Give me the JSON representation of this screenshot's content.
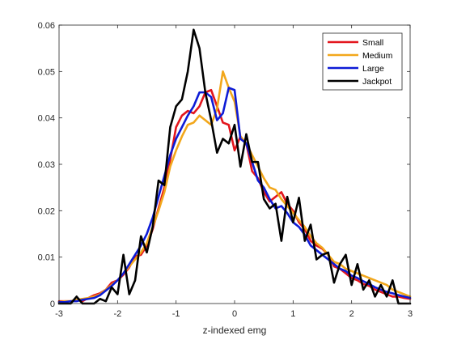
{
  "chart_data": {
    "type": "line",
    "title": "",
    "xlabel": "z-indexed emg",
    "ylabel": "",
    "xlim": [
      -3,
      3
    ],
    "ylim": [
      0,
      0.06
    ],
    "xticks": [
      "-3",
      "-2",
      "-1",
      "0",
      "1",
      "2",
      "3"
    ],
    "yticks": [
      "0",
      "0.01",
      "0.02",
      "0.03",
      "0.04",
      "0.05",
      "0.06"
    ],
    "grid": false,
    "legend_position": "top-right",
    "series": [
      {
        "name": "Small",
        "color": "#e3161d",
        "x": [
          -3.0,
          -2.9,
          -2.8,
          -2.7,
          -2.6,
          -2.5,
          -2.4,
          -2.3,
          -2.2,
          -2.1,
          -2.0,
          -1.9,
          -1.8,
          -1.7,
          -1.6,
          -1.5,
          -1.4,
          -1.3,
          -1.2,
          -1.1,
          -1.0,
          -0.9,
          -0.8,
          -0.7,
          -0.6,
          -0.5,
          -0.4,
          -0.3,
          -0.2,
          -0.1,
          0.0,
          0.1,
          0.2,
          0.3,
          0.4,
          0.5,
          0.6,
          0.7,
          0.8,
          0.9,
          1.0,
          1.1,
          1.2,
          1.3,
          1.4,
          1.5,
          1.6,
          1.7,
          1.8,
          1.9,
          2.0,
          2.1,
          2.2,
          2.3,
          2.4,
          2.5,
          2.6,
          2.7,
          2.8,
          2.9,
          3.0
        ],
        "y": [
          0.0005,
          0.0005,
          0.0005,
          0.0008,
          0.0005,
          0.0012,
          0.0018,
          0.0022,
          0.003,
          0.0045,
          0.005,
          0.0062,
          0.0078,
          0.0102,
          0.0105,
          0.0125,
          0.016,
          0.0205,
          0.025,
          0.031,
          0.038,
          0.0405,
          0.0415,
          0.041,
          0.0425,
          0.0455,
          0.046,
          0.0425,
          0.039,
          0.0385,
          0.033,
          0.036,
          0.0345,
          0.0285,
          0.027,
          0.024,
          0.022,
          0.023,
          0.024,
          0.0215,
          0.02,
          0.0175,
          0.016,
          0.0135,
          0.0125,
          0.0118,
          0.0105,
          0.008,
          0.0075,
          0.0065,
          0.0055,
          0.005,
          0.0042,
          0.0038,
          0.003,
          0.0025,
          0.002,
          0.0015,
          0.0015,
          0.0012,
          0.001
        ]
      },
      {
        "name": "Medium",
        "color": "#f2a71b",
        "x": [
          -3.0,
          -2.9,
          -2.8,
          -2.7,
          -2.6,
          -2.5,
          -2.4,
          -2.3,
          -2.2,
          -2.1,
          -2.0,
          -1.9,
          -1.8,
          -1.7,
          -1.6,
          -1.5,
          -1.4,
          -1.3,
          -1.2,
          -1.1,
          -1.0,
          -0.9,
          -0.8,
          -0.7,
          -0.6,
          -0.5,
          -0.4,
          -0.3,
          -0.2,
          -0.1,
          0.0,
          0.1,
          0.2,
          0.3,
          0.4,
          0.5,
          0.6,
          0.7,
          0.8,
          0.9,
          1.0,
          1.1,
          1.2,
          1.3,
          1.4,
          1.5,
          1.6,
          1.7,
          1.8,
          1.9,
          2.0,
          2.1,
          2.2,
          2.3,
          2.4,
          2.5,
          2.6,
          2.7,
          2.8,
          2.9,
          3.0
        ],
        "y": [
          0.0003,
          0.0005,
          0.0005,
          0.0008,
          0.001,
          0.0012,
          0.0015,
          0.002,
          0.003,
          0.004,
          0.005,
          0.0065,
          0.008,
          0.0095,
          0.011,
          0.013,
          0.0165,
          0.02,
          0.024,
          0.0295,
          0.033,
          0.036,
          0.0385,
          0.039,
          0.0405,
          0.0395,
          0.0385,
          0.042,
          0.05,
          0.0465,
          0.0435,
          0.036,
          0.0345,
          0.032,
          0.0295,
          0.027,
          0.025,
          0.0245,
          0.0225,
          0.021,
          0.0195,
          0.018,
          0.0165,
          0.0145,
          0.013,
          0.012,
          0.0105,
          0.009,
          0.0085,
          0.0075,
          0.007,
          0.0065,
          0.006,
          0.0055,
          0.005,
          0.0045,
          0.004,
          0.003,
          0.0025,
          0.002,
          0.0015
        ]
      },
      {
        "name": "Large",
        "color": "#0d1bd6",
        "x": [
          -3.0,
          -2.9,
          -2.8,
          -2.7,
          -2.6,
          -2.5,
          -2.4,
          -2.3,
          -2.2,
          -2.1,
          -2.0,
          -1.9,
          -1.8,
          -1.7,
          -1.6,
          -1.5,
          -1.4,
          -1.3,
          -1.2,
          -1.1,
          -1.0,
          -0.9,
          -0.8,
          -0.7,
          -0.6,
          -0.5,
          -0.4,
          -0.3,
          -0.2,
          -0.1,
          0.0,
          0.1,
          0.2,
          0.3,
          0.4,
          0.5,
          0.6,
          0.7,
          0.8,
          0.9,
          1.0,
          1.1,
          1.2,
          1.3,
          1.4,
          1.5,
          1.6,
          1.7,
          1.8,
          1.9,
          2.0,
          2.1,
          2.2,
          2.3,
          2.4,
          2.5,
          2.6,
          2.7,
          2.8,
          2.9,
          3.0
        ],
        "y": [
          0.0003,
          0.0003,
          0.0005,
          0.0005,
          0.0008,
          0.001,
          0.0012,
          0.0018,
          0.0028,
          0.0038,
          0.005,
          0.0065,
          0.0085,
          0.0105,
          0.0125,
          0.015,
          0.0185,
          0.023,
          0.0275,
          0.032,
          0.0355,
          0.038,
          0.0405,
          0.0425,
          0.0455,
          0.0455,
          0.0445,
          0.0395,
          0.041,
          0.0465,
          0.046,
          0.0355,
          0.0345,
          0.0305,
          0.0265,
          0.025,
          0.0225,
          0.0205,
          0.021,
          0.0195,
          0.0175,
          0.0165,
          0.0148,
          0.0125,
          0.0115,
          0.0105,
          0.0095,
          0.0085,
          0.0075,
          0.007,
          0.006,
          0.0055,
          0.0048,
          0.0042,
          0.0035,
          0.003,
          0.0025,
          0.0022,
          0.0018,
          0.0015,
          0.0012
        ]
      },
      {
        "name": "Jackpot",
        "color": "#000000",
        "x": [
          -3.0,
          -2.9,
          -2.8,
          -2.7,
          -2.6,
          -2.5,
          -2.4,
          -2.3,
          -2.2,
          -2.1,
          -2.0,
          -1.9,
          -1.8,
          -1.7,
          -1.6,
          -1.5,
          -1.4,
          -1.3,
          -1.2,
          -1.1,
          -1.0,
          -0.9,
          -0.8,
          -0.7,
          -0.6,
          -0.5,
          -0.4,
          -0.3,
          -0.2,
          -0.1,
          0.0,
          0.1,
          0.2,
          0.3,
          0.4,
          0.5,
          0.6,
          0.7,
          0.8,
          0.9,
          1.0,
          1.1,
          1.2,
          1.3,
          1.4,
          1.5,
          1.6,
          1.7,
          1.8,
          1.9,
          2.0,
          2.1,
          2.2,
          2.3,
          2.4,
          2.5,
          2.6,
          2.7,
          2.8,
          2.9,
          3.0
        ],
        "y": [
          0,
          0,
          0,
          0.0015,
          0,
          0,
          0,
          0.001,
          0.0005,
          0.0035,
          0.002,
          0.0105,
          0.002,
          0.005,
          0.0145,
          0.011,
          0.0165,
          0.0265,
          0.0255,
          0.038,
          0.0425,
          0.044,
          0.05,
          0.059,
          0.055,
          0.0455,
          0.0395,
          0.0325,
          0.0355,
          0.0345,
          0.0385,
          0.0295,
          0.0365,
          0.0305,
          0.0305,
          0.0225,
          0.0205,
          0.0215,
          0.0135,
          0.023,
          0.0175,
          0.0228,
          0.0135,
          0.017,
          0.0095,
          0.0105,
          0.011,
          0.0045,
          0.0085,
          0.0105,
          0.004,
          0.0085,
          0.003,
          0.005,
          0.0015,
          0.004,
          0.0015,
          0.005,
          0,
          0,
          0
        ]
      }
    ]
  }
}
